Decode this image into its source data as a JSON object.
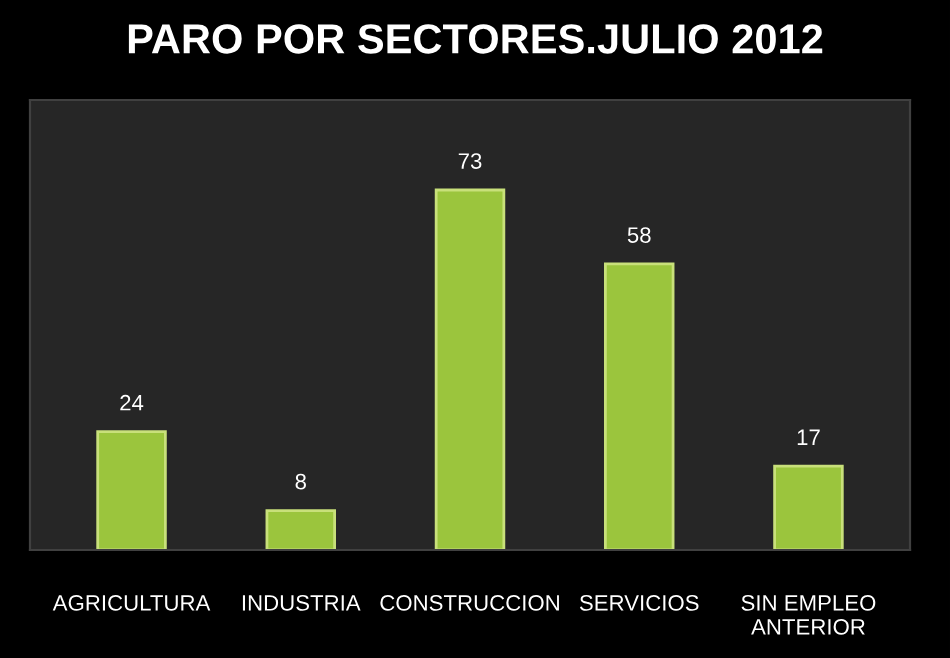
{
  "chart_data": {
    "type": "bar",
    "title": "PARO POR SECTORES.JULIO 2012",
    "categories": [
      "AGRICULTURA",
      "INDUSTRIA",
      "CONSTRUCCION",
      "SERVICIOS",
      "SIN EMPLEO\nANTERIOR"
    ],
    "values": [
      24,
      8,
      73,
      58,
      17
    ],
    "color": "#9bc53d",
    "data_labels": true,
    "grid": false,
    "legend": false
  }
}
